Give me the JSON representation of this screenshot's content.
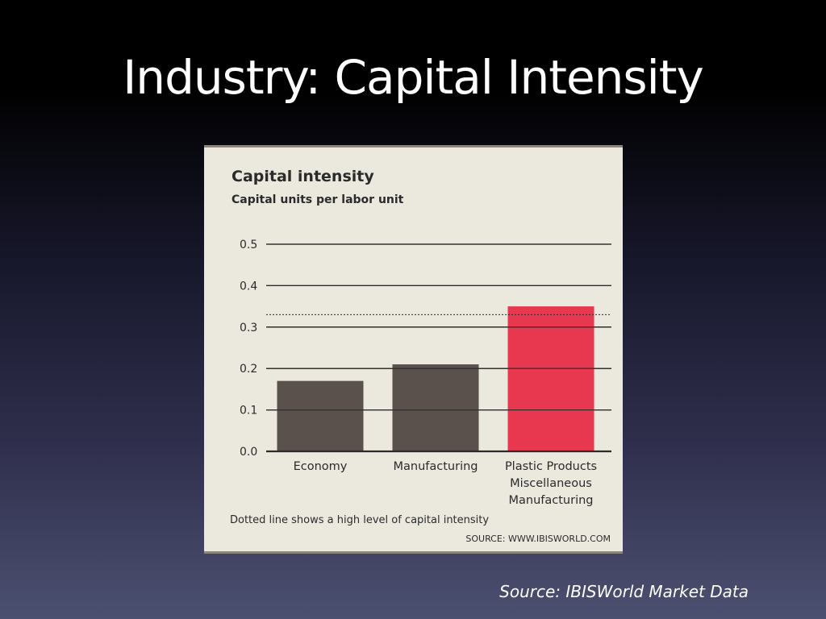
{
  "slide": {
    "title": "Industry: Capital Intensity",
    "source_caption": "Source: IBISWorld Market Data"
  },
  "chart_data": {
    "type": "bar",
    "title": "Capital intensity",
    "subtitle": "Capital units per labor unit",
    "categories": [
      [
        "Economy"
      ],
      [
        "Manufacturing"
      ],
      [
        "Plastic Products",
        "Miscellaneous",
        "Manufacturing"
      ]
    ],
    "values": [
      0.17,
      0.21,
      0.35
    ],
    "bar_colors": [
      "#5a504c",
      "#5a504c",
      "#e8384f"
    ],
    "ylim": [
      0,
      0.5
    ],
    "yticks": [
      "0.0",
      "0.1",
      "0.2",
      "0.3",
      "0.4",
      "0.5"
    ],
    "grid": true,
    "reference_line": {
      "value": 0.33,
      "style": "dotted"
    },
    "footnote": "Dotted line shows a high level of capital intensity",
    "source": "SOURCE: WWW.IBISWORLD.COM"
  }
}
